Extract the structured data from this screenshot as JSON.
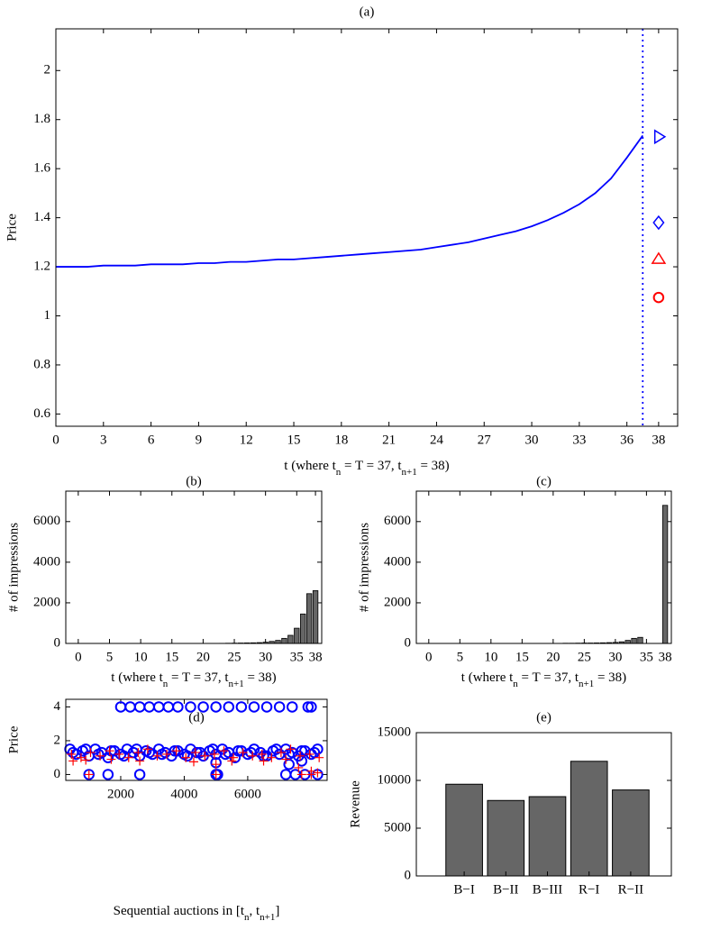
{
  "chart_data": [
    {
      "type": "line",
      "title": "(a)",
      "ylabel": "Price",
      "xlabel": [
        "t (where t",
        "n",
        " = T = 37, t",
        "n+1",
        " = 38)"
      ],
      "x": [
        0,
        1,
        2,
        3,
        4,
        5,
        6,
        7,
        8,
        9,
        10,
        11,
        12,
        13,
        14,
        15,
        16,
        17,
        18,
        19,
        20,
        21,
        22,
        23,
        24,
        25,
        26,
        27,
        28,
        29,
        30,
        31,
        32,
        33,
        34,
        35,
        36,
        37
      ],
      "values": [
        1.2,
        1.2,
        1.2,
        1.205,
        1.205,
        1.205,
        1.21,
        1.21,
        1.21,
        1.215,
        1.215,
        1.22,
        1.22,
        1.225,
        1.23,
        1.23,
        1.235,
        1.24,
        1.245,
        1.25,
        1.255,
        1.26,
        1.265,
        1.27,
        1.28,
        1.29,
        1.3,
        1.315,
        1.33,
        1.345,
        1.365,
        1.39,
        1.42,
        1.455,
        1.5,
        1.56,
        1.645,
        1.735
      ],
      "color": "#0000ff",
      "vline": 37,
      "markers": [
        {
          "shape": "triangle-right",
          "color": "#0000ff",
          "x": 38,
          "y": 1.73
        },
        {
          "shape": "diamond",
          "color": "#0000ff",
          "x": 38,
          "y": 1.38
        },
        {
          "shape": "triangle-up",
          "color": "#ff0000",
          "x": 38,
          "y": 1.23
        },
        {
          "shape": "circle",
          "color": "#ff0000",
          "x": 38,
          "y": 1.075
        }
      ],
      "xlim": [
        0,
        39.2
      ],
      "xticks": [
        0,
        3,
        6,
        9,
        12,
        15,
        18,
        21,
        24,
        27,
        30,
        33,
        36,
        38
      ],
      "ylim": [
        0.55,
        2.17
      ],
      "yticks": [
        0.6,
        0.8,
        1,
        1.2,
        1.4,
        1.6,
        1.8,
        2
      ]
    },
    {
      "type": "bar",
      "title": "(b)",
      "ylabel": "# of impressions",
      "xlabel": [
        "t (where t",
        "n",
        " = T = 37, t",
        "n+1",
        " = 38)"
      ],
      "x": [
        0,
        1,
        2,
        3,
        4,
        5,
        6,
        7,
        8,
        9,
        10,
        11,
        12,
        13,
        14,
        15,
        16,
        17,
        18,
        19,
        20,
        21,
        22,
        23,
        24,
        25,
        26,
        27,
        28,
        29,
        30,
        31,
        32,
        33,
        34,
        35,
        36,
        37,
        38
      ],
      "values": [
        0,
        0,
        0,
        0,
        0,
        0,
        0,
        0,
        0,
        0,
        0,
        0,
        0,
        0,
        0,
        0,
        0,
        0,
        0,
        0,
        0,
        0,
        0,
        5,
        10,
        15,
        20,
        25,
        30,
        40,
        60,
        100,
        150,
        250,
        400,
        750,
        1450,
        2450,
        2600
      ],
      "color": "#666666",
      "xlim": [
        -2,
        39
      ],
      "xticks": [
        0,
        5,
        10,
        15,
        20,
        25,
        30,
        35,
        38
      ],
      "ylim": [
        0,
        7500
      ],
      "yticks": [
        0,
        2000,
        4000,
        6000
      ]
    },
    {
      "type": "bar",
      "title": "(c)",
      "ylabel": "# of impressions",
      "xlabel": [
        "t (where t",
        "n",
        " = T = 37, t",
        "n+1",
        " = 38)"
      ],
      "x": [
        0,
        1,
        2,
        3,
        4,
        5,
        6,
        7,
        8,
        9,
        10,
        11,
        12,
        13,
        14,
        15,
        16,
        17,
        18,
        19,
        20,
        21,
        22,
        23,
        24,
        25,
        26,
        27,
        28,
        29,
        30,
        31,
        32,
        33,
        34,
        35,
        36,
        37,
        38
      ],
      "values": [
        0,
        0,
        0,
        0,
        0,
        0,
        0,
        0,
        0,
        0,
        0,
        0,
        0,
        0,
        0,
        0,
        0,
        0,
        0,
        0,
        0,
        0,
        10,
        10,
        15,
        20,
        20,
        25,
        30,
        40,
        50,
        80,
        150,
        250,
        300,
        0,
        0,
        0,
        6800
      ],
      "color": "#666666",
      "xlim": [
        -2,
        39
      ],
      "xticks": [
        0,
        5,
        10,
        15,
        20,
        25,
        30,
        35,
        38
      ],
      "ylim": [
        0,
        7500
      ],
      "yticks": [
        0,
        2000,
        4000,
        6000
      ]
    },
    {
      "type": "scatter",
      "title": "(d)",
      "ylabel": "Price",
      "xlabel": [
        "Sequential auctions in [t",
        "n",
        ", t",
        "n+1",
        "]"
      ],
      "series": [
        {
          "marker": "circle",
          "color": "#0000ff",
          "x": [
            400,
            600,
            800,
            1000,
            1200,
            1400,
            1600,
            1800,
            2000,
            2200,
            2400,
            2600,
            2800,
            3000,
            3200,
            3400,
            3600,
            3800,
            4000,
            4200,
            4400,
            4600,
            4800,
            5000,
            5200,
            5400,
            5600,
            5800,
            6000,
            6200,
            6400,
            6600,
            6800,
            7000,
            7200,
            7400,
            7600,
            7800,
            8000,
            8200,
            500,
            900,
            1300,
            1700,
            2100,
            2500,
            2900,
            3300,
            3700,
            4100,
            4500,
            4900,
            5300,
            5700,
            6100,
            6500,
            6900,
            7300,
            7700,
            8100,
            2000,
            2300,
            2600,
            2900,
            3200,
            3500,
            3800,
            4200,
            4600,
            5000,
            5400,
            5800,
            6200,
            6600,
            7000,
            7400,
            7900,
            8000,
            1000,
            1600,
            2600,
            5000,
            5050,
            7200,
            7500,
            7800,
            8200,
            5000,
            7300,
            7700
          ],
          "values": [
            1.5,
            1.2,
            1.4,
            1.1,
            1.5,
            1.3,
            1.0,
            1.4,
            1.2,
            1.5,
            1.3,
            1.1,
            1.4,
            1.2,
            1.5,
            1.3,
            1.1,
            1.4,
            1.2,
            1.5,
            1.3,
            1.1,
            1.4,
            1.2,
            1.5,
            1.3,
            1.0,
            1.4,
            1.2,
            1.5,
            1.3,
            1.1,
            1.4,
            1.2,
            1.5,
            1.3,
            1.1,
            1.4,
            1.2,
            1.5,
            1.3,
            1.5,
            1.2,
            1.4,
            1.1,
            1.5,
            1.3,
            1.2,
            1.4,
            1.1,
            1.3,
            1.5,
            1.2,
            1.4,
            1.3,
            1.1,
            1.5,
            1.2,
            1.4,
            1.3,
            4,
            4,
            4,
            4,
            4,
            4,
            4,
            4,
            4,
            4,
            4,
            4,
            4,
            4,
            4,
            4,
            4,
            4,
            0,
            0,
            0,
            0,
            0,
            0,
            0,
            0,
            0,
            0.7,
            0.6,
            0.8
          ]
        },
        {
          "marker": "plus",
          "color": "#ff0000",
          "x": [
            450,
            750,
            1050,
            1350,
            1650,
            1950,
            2250,
            2550,
            2850,
            3150,
            3450,
            3750,
            4050,
            4350,
            4650,
            4950,
            5250,
            5550,
            5850,
            6150,
            6450,
            6750,
            7050,
            7350,
            7650,
            7950,
            8250,
            500,
            900,
            1700,
            2600,
            4300,
            5000,
            5500,
            6500,
            7200,
            7600,
            8000,
            8200,
            1000,
            5000,
            7700,
            8000
          ],
          "values": [
            1.2,
            1.0,
            1.3,
            1.1,
            1.4,
            1.2,
            1.0,
            1.3,
            1.5,
            1.1,
            1.2,
            1.4,
            1.0,
            1.3,
            1.1,
            1.2,
            1.4,
            1.0,
            1.3,
            1.1,
            1.2,
            1.0,
            1.3,
            1.5,
            1.1,
            1.2,
            1.0,
            0.8,
            0.85,
            0.9,
            0.8,
            0.75,
            0.6,
            0.8,
            0.8,
            0.9,
            0.4,
            0.2,
            0.1,
            0,
            0,
            0,
            0
          ]
        }
      ],
      "xlim": [
        270,
        8500
      ],
      "xticks": [
        2000,
        4000,
        6000
      ],
      "ylim": [
        -0.35,
        4.45
      ],
      "yticks": [
        0,
        2,
        4
      ]
    },
    {
      "type": "bar",
      "title": "(e)",
      "ylabel": "Revenue",
      "categories": [
        "B−I",
        "B−II",
        "B−III",
        "R−I",
        "R−II"
      ],
      "values": [
        9600,
        7900,
        8300,
        12000,
        9000
      ],
      "color": "#666666",
      "ylim": [
        0,
        15000
      ],
      "yticks": [
        0,
        5000,
        10000,
        15000
      ]
    }
  ]
}
